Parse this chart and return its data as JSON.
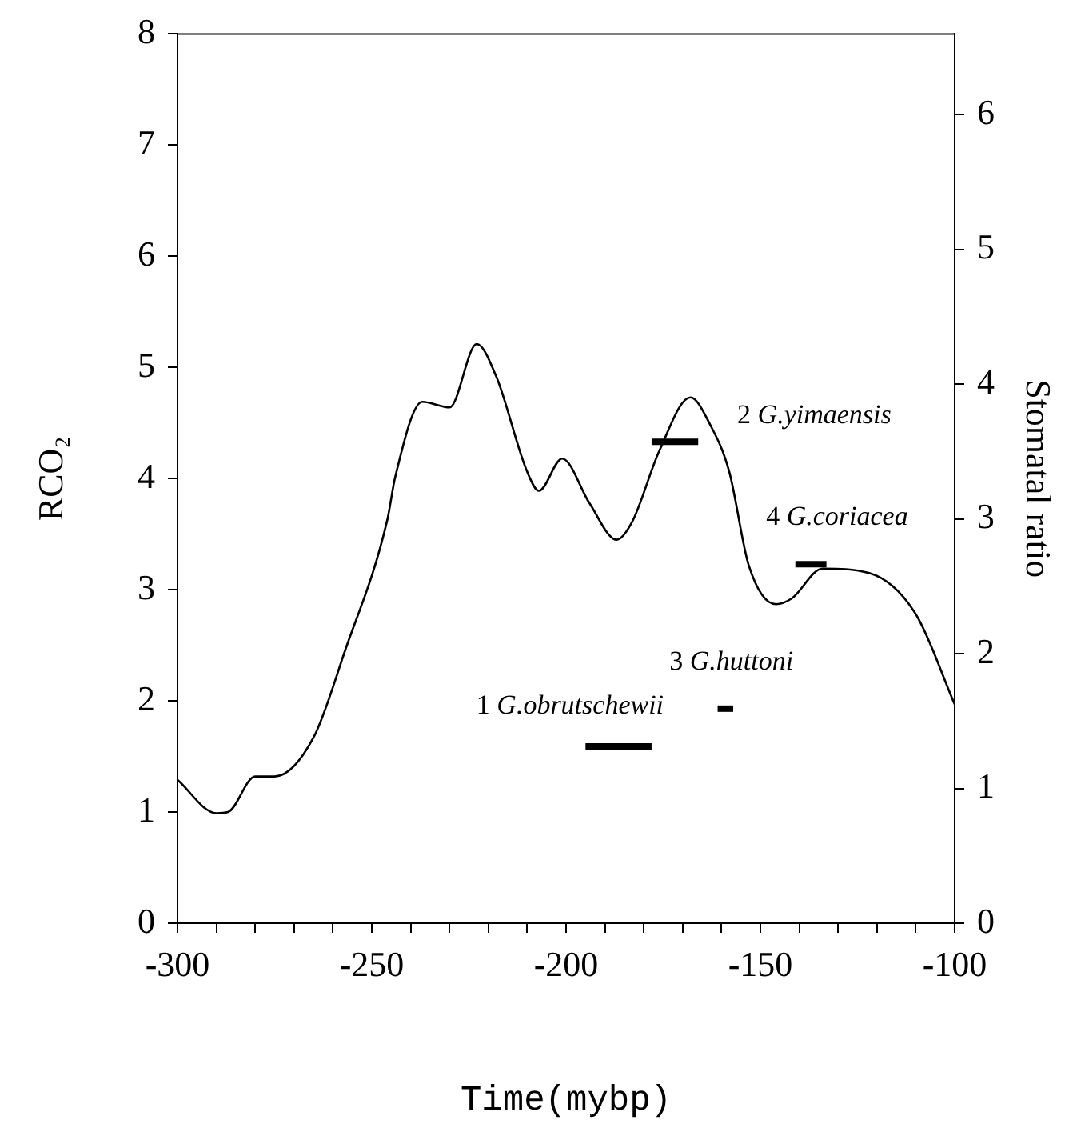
{
  "chart_data": {
    "type": "line",
    "xlabel": "Time(mybp)",
    "ylabel": "RCO₂",
    "y2label": "Stomatal ratio",
    "xlim": [
      -300,
      -100
    ],
    "xticks": [
      -300,
      {
        "value": -290,
        "label": null
      },
      {
        "value": -280,
        "label": null
      },
      {
        "value": -270,
        "label": null
      },
      {
        "value": -260,
        "label": null
      },
      -250,
      {
        "value": -240,
        "label": null
      },
      {
        "value": -230,
        "label": null
      },
      {
        "value": -220,
        "label": null
      },
      {
        "value": -210,
        "label": null
      },
      -200,
      {
        "value": -190,
        "label": null
      },
      {
        "value": -180,
        "label": null
      },
      {
        "value": -170,
        "label": null
      },
      {
        "value": -160,
        "label": null
      },
      -150,
      {
        "value": -140,
        "label": null
      },
      {
        "value": -130,
        "label": null
      },
      {
        "value": -120,
        "label": null
      },
      {
        "value": -110,
        "label": null
      },
      -100
    ],
    "ylim": [
      0,
      8
    ],
    "yticks": [
      0,
      1,
      2,
      3,
      4,
      5,
      6,
      7,
      8
    ],
    "y2lim": [
      0,
      6.6
    ],
    "y2ticks": [
      0,
      1,
      2,
      3,
      4,
      5,
      6
    ],
    "grid": false,
    "legend": false,
    "marker": "none",
    "line_style": "solid",
    "series": [
      {
        "color": "#000000",
        "x": [
          -300,
          -290,
          -287,
          -280,
          -275,
          -265,
          -257,
          -246,
          -244,
          -237,
          -230,
          -223,
          -218,
          -210,
          -207,
          -201,
          -194,
          -187,
          -183,
          -176,
          -168,
          -163,
          -158,
          -153,
          -146,
          -142,
          -134,
          -122,
          -110,
          -100
        ],
        "values": [
          1.29,
          0.99,
          1.0,
          1.32,
          1.32,
          1.67,
          2.44,
          3.63,
          4.01,
          4.69,
          4.64,
          5.21,
          4.92,
          4.06,
          3.89,
          4.18,
          3.78,
          3.45,
          3.61,
          4.25,
          4.73,
          4.49,
          4.06,
          3.22,
          2.87,
          2.92,
          3.19,
          3.15,
          2.78,
          1.97
        ]
      },
      {
        "color": "#000000",
        "x": [
          -195,
          -178
        ],
        "values": [
          1.59,
          1.59
        ]
      },
      {
        "color": "#000000",
        "x": [
          -178,
          -166
        ],
        "values": [
          4.33,
          4.33
        ]
      },
      {
        "color": "#000000",
        "x": [
          -161,
          -157
        ],
        "values": [
          1.93,
          1.93
        ]
      },
      {
        "color": "#000000",
        "x": [
          -141,
          -133
        ],
        "values": [
          3.23,
          3.23
        ]
      }
    ],
    "annotations": [
      {
        "text": "1 G.obrutschewii",
        "x": -186,
        "y": 1.59
      },
      {
        "text": "2 G.yimaensis",
        "x": -172,
        "y": 4.33
      },
      {
        "text": "3 G.huttoni",
        "x": -159,
        "y": 1.93
      },
      {
        "text": "4 G.coriacea",
        "x": -137,
        "y": 3.23
      }
    ]
  }
}
